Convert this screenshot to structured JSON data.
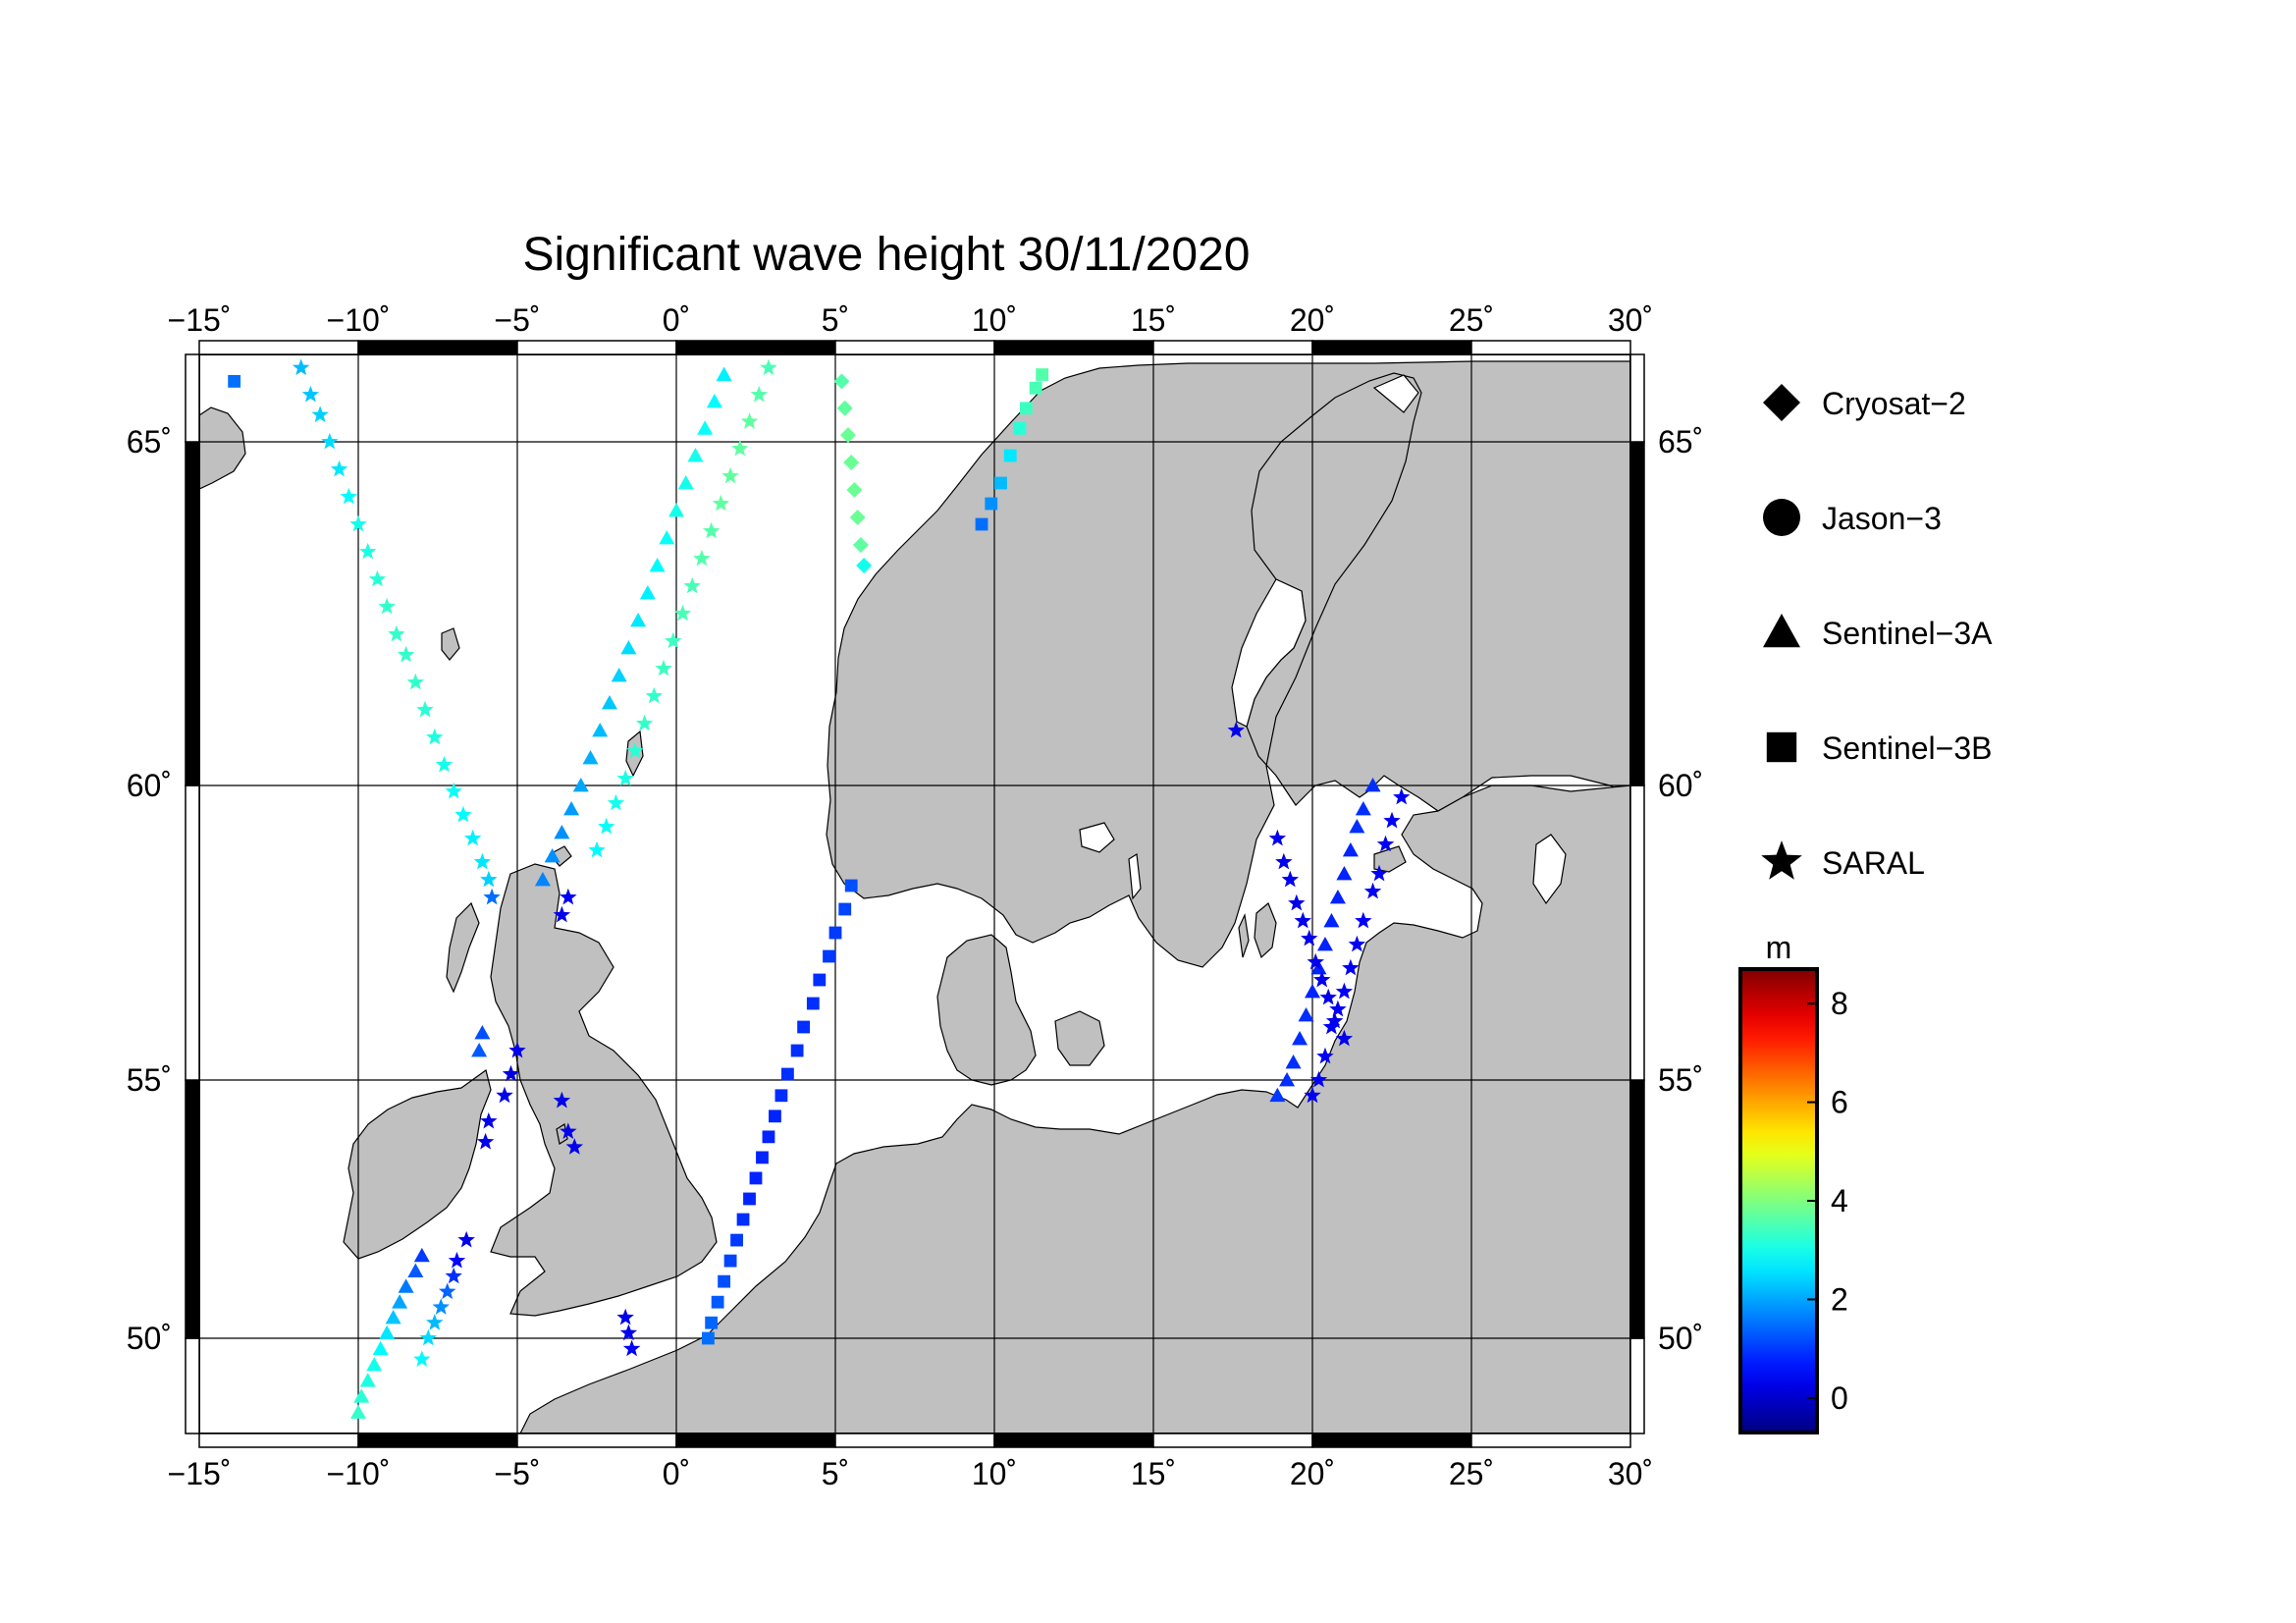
{
  "title": "Significant wave height 30/11/2020",
  "map": {
    "lon_range": [
      -15,
      30
    ],
    "lat_range": [
      48.2,
      66.3
    ],
    "lon_ticks": [
      -15,
      -10,
      -5,
      0,
      5,
      10,
      15,
      20,
      25,
      30
    ],
    "lon_tick_labels": [
      "−15˚",
      "−10˚",
      "−5˚",
      "0˚",
      "5˚",
      "10˚",
      "15˚",
      "20˚",
      "25˚",
      "30˚"
    ],
    "lat_ticks": [
      50,
      55,
      60,
      65
    ],
    "lat_tick_labels": [
      "50˚",
      "55˚",
      "60˚",
      "65˚"
    ],
    "grid": true,
    "land_color": "#c0c0c0",
    "sea_color": "#ffffff"
  },
  "legend": {
    "position": "right",
    "items": [
      {
        "label": "Cryosat−2",
        "marker": "diamond"
      },
      {
        "label": "Jason−3",
        "marker": "circle"
      },
      {
        "label": "Sentinel−3A",
        "marker": "triangle"
      },
      {
        "label": "Sentinel−3B",
        "marker": "square"
      },
      {
        "label": "SARAL",
        "marker": "star"
      }
    ]
  },
  "colorbar": {
    "unit": "m",
    "range": [
      -0.7,
      8.7
    ],
    "tick_values": [
      0,
      2,
      4,
      6,
      8
    ],
    "tick_labels": [
      "0",
      "2",
      "4",
      "6",
      "8"
    ],
    "colormap": "jet"
  },
  "chart_data": {
    "type": "scatter",
    "title": "Significant wave height 30/11/2020",
    "xlabel": "",
    "ylabel": "",
    "x_unit": "longitude (deg)",
    "y_unit": "latitude (deg)",
    "xlim": [
      -15,
      30
    ],
    "ylim": [
      48.2,
      66.3
    ],
    "color_value_unit": "m",
    "tracks": [
      {
        "satellite": "Sentinel-3B",
        "marker": "square",
        "points": [
          [
            -13.9,
            65.9,
            1.5
          ]
        ]
      },
      {
        "satellite": "SARAL",
        "marker": "star",
        "points": [
          [
            -11.8,
            66.1,
            2.2
          ],
          [
            -11.5,
            65.7,
            2.3
          ],
          [
            -11.2,
            65.4,
            2.4
          ],
          [
            -10.9,
            65.0,
            2.5
          ],
          [
            -10.6,
            64.6,
            2.6
          ],
          [
            -10.3,
            64.2,
            2.8
          ],
          [
            -10.0,
            63.8,
            3.0
          ],
          [
            -9.7,
            63.4,
            3.1
          ],
          [
            -9.4,
            63.0,
            3.2
          ],
          [
            -9.1,
            62.6,
            3.3
          ],
          [
            -8.8,
            62.2,
            3.3
          ],
          [
            -8.5,
            61.9,
            3.3
          ],
          [
            -8.2,
            61.5,
            3.3
          ],
          [
            -7.9,
            61.1,
            3.2
          ],
          [
            -7.6,
            60.7,
            3.1
          ],
          [
            -7.3,
            60.3,
            3.0
          ],
          [
            -7.0,
            59.9,
            2.9
          ],
          [
            -6.7,
            59.5,
            2.8
          ],
          [
            -6.4,
            59.1,
            2.7
          ],
          [
            -6.1,
            58.7,
            2.6
          ],
          [
            -5.9,
            58.4,
            2.4
          ],
          [
            -5.8,
            58.1,
            1.5
          ]
        ]
      },
      {
        "satellite": "SARAL",
        "marker": "star",
        "points": [
          [
            -3.4,
            58.1,
            0.4
          ],
          [
            -3.6,
            57.8,
            0.3
          ]
        ]
      },
      {
        "satellite": "Sentinel-3A",
        "marker": "triangle",
        "points": [
          [
            1.5,
            66.0,
            2.7
          ],
          [
            1.2,
            65.6,
            2.8
          ],
          [
            0.9,
            65.2,
            2.9
          ],
          [
            0.6,
            64.8,
            3.0
          ],
          [
            0.3,
            64.4,
            3.0
          ],
          [
            0.0,
            64.0,
            3.0
          ],
          [
            -0.3,
            63.6,
            2.9
          ],
          [
            -0.6,
            63.2,
            2.8
          ],
          [
            -0.9,
            62.8,
            2.7
          ],
          [
            -1.2,
            62.4,
            2.6
          ],
          [
            -1.5,
            62.0,
            2.5
          ],
          [
            -1.8,
            61.6,
            2.4
          ],
          [
            -2.1,
            61.2,
            2.3
          ],
          [
            -2.4,
            60.8,
            2.2
          ],
          [
            -2.7,
            60.4,
            2.1
          ],
          [
            -3.0,
            60.0,
            2.0
          ],
          [
            -3.3,
            59.6,
            1.9
          ],
          [
            -3.6,
            59.2,
            1.8
          ],
          [
            -3.9,
            58.8,
            1.8
          ],
          [
            -4.2,
            58.4,
            1.7
          ]
        ]
      },
      {
        "satellite": "SARAL",
        "marker": "star",
        "points": [
          [
            2.9,
            66.1,
            3.5
          ],
          [
            2.6,
            65.7,
            3.6
          ],
          [
            2.3,
            65.3,
            3.7
          ],
          [
            2.0,
            64.9,
            3.7
          ],
          [
            1.7,
            64.5,
            3.7
          ],
          [
            1.4,
            64.1,
            3.7
          ],
          [
            1.1,
            63.7,
            3.6
          ],
          [
            0.8,
            63.3,
            3.6
          ],
          [
            0.5,
            62.9,
            3.5
          ],
          [
            0.2,
            62.5,
            3.5
          ],
          [
            -0.1,
            62.1,
            3.4
          ],
          [
            -0.4,
            61.7,
            3.4
          ],
          [
            -0.7,
            61.3,
            3.3
          ],
          [
            -1.0,
            60.9,
            3.3
          ],
          [
            -1.3,
            60.5,
            3.2
          ],
          [
            -1.6,
            60.1,
            3.1
          ],
          [
            -1.9,
            59.7,
            3.0
          ],
          [
            -2.2,
            59.3,
            2.9
          ],
          [
            -2.5,
            58.9,
            2.8
          ]
        ]
      },
      {
        "satellite": "Cryosat-2",
        "marker": "diamond",
        "points": [
          [
            5.2,
            65.9,
            3.6
          ],
          [
            5.3,
            65.5,
            3.7
          ],
          [
            5.4,
            65.1,
            3.8
          ],
          [
            5.5,
            64.7,
            3.8
          ],
          [
            5.6,
            64.3,
            3.8
          ],
          [
            5.7,
            63.9,
            3.8
          ],
          [
            5.8,
            63.5,
            3.7
          ],
          [
            5.9,
            63.2,
            3.0
          ]
        ]
      },
      {
        "satellite": "Sentinel-3B",
        "marker": "square",
        "points": [
          [
            11.5,
            66.0,
            3.6
          ],
          [
            11.3,
            65.8,
            3.5
          ],
          [
            11.0,
            65.5,
            3.4
          ],
          [
            10.8,
            65.2,
            3.2
          ],
          [
            10.5,
            64.8,
            2.6
          ],
          [
            10.2,
            64.4,
            2.2
          ],
          [
            9.9,
            64.1,
            1.8
          ],
          [
            9.6,
            63.8,
            1.5
          ]
        ]
      },
      {
        "satellite": "Sentinel-3B",
        "marker": "square",
        "points": [
          [
            5.5,
            58.3,
            1.2
          ],
          [
            5.3,
            57.9,
            1.1
          ],
          [
            5.0,
            57.5,
            1.0
          ],
          [
            4.8,
            57.1,
            1.0
          ],
          [
            4.5,
            56.7,
            0.9
          ],
          [
            4.3,
            56.3,
            0.9
          ],
          [
            4.0,
            55.9,
            0.9
          ],
          [
            3.8,
            55.5,
            0.9
          ],
          [
            3.5,
            55.1,
            0.9
          ],
          [
            3.3,
            54.7,
            0.9
          ],
          [
            3.1,
            54.3,
            0.8
          ],
          [
            2.9,
            53.9,
            0.8
          ],
          [
            2.7,
            53.5,
            0.8
          ],
          [
            2.5,
            53.1,
            0.8
          ],
          [
            2.3,
            52.7,
            0.8
          ],
          [
            2.1,
            52.3,
            0.9
          ],
          [
            1.9,
            51.9,
            1.0
          ],
          [
            1.7,
            51.5,
            1.1
          ],
          [
            1.5,
            51.1,
            1.2
          ],
          [
            1.3,
            50.7,
            1.3
          ],
          [
            1.1,
            50.3,
            1.4
          ],
          [
            1.0,
            50.0,
            1.5
          ]
        ]
      },
      {
        "satellite": "Sentinel-3A",
        "marker": "triangle",
        "points": [
          [
            -6.1,
            55.8,
            1.2
          ],
          [
            -6.2,
            55.5,
            1.3
          ],
          [
            -8.0,
            51.6,
            1.0
          ],
          [
            -8.2,
            51.3,
            1.3
          ],
          [
            -8.5,
            51.0,
            1.6
          ],
          [
            -8.7,
            50.7,
            2.0
          ],
          [
            -8.9,
            50.4,
            2.3
          ],
          [
            -9.1,
            50.1,
            2.6
          ],
          [
            -9.3,
            49.8,
            2.8
          ],
          [
            -9.5,
            49.5,
            3.0
          ],
          [
            -9.7,
            49.2,
            3.1
          ],
          [
            -9.9,
            48.9,
            3.2
          ],
          [
            -10.0,
            48.6,
            3.3
          ]
        ]
      },
      {
        "satellite": "SARAL",
        "marker": "star",
        "points": [
          [
            -5.0,
            55.5,
            0.3
          ],
          [
            -5.2,
            55.1,
            0.2
          ],
          [
            -5.4,
            54.7,
            0.3
          ],
          [
            -5.9,
            54.2,
            0.3
          ],
          [
            -6.0,
            53.8,
            0.3
          ],
          [
            -3.6,
            54.6,
            0.3
          ],
          [
            -3.4,
            54.0,
            0.3
          ],
          [
            -3.2,
            53.7,
            0.3
          ],
          [
            -6.6,
            51.9,
            0.3
          ],
          [
            -6.9,
            51.5,
            0.5
          ],
          [
            -7.0,
            51.2,
            0.9
          ],
          [
            -7.2,
            50.9,
            1.4
          ],
          [
            -7.4,
            50.6,
            1.8
          ],
          [
            -7.6,
            50.3,
            2.2
          ],
          [
            -7.8,
            50.0,
            2.5
          ],
          [
            -8.0,
            49.6,
            2.8
          ]
        ]
      },
      {
        "satellite": "SARAL",
        "marker": "star",
        "points": [
          [
            -1.6,
            50.4,
            0.3
          ],
          [
            -1.5,
            50.1,
            0.3
          ],
          [
            -1.4,
            49.8,
            0.4
          ]
        ]
      },
      {
        "satellite": "Sentinel-3A",
        "marker": "triangle",
        "points": [
          [
            21.9,
            60.0,
            0.9
          ],
          [
            21.6,
            59.6,
            0.9
          ],
          [
            21.4,
            59.3,
            0.9
          ],
          [
            21.2,
            58.9,
            0.8
          ],
          [
            21.0,
            58.5,
            0.8
          ],
          [
            20.8,
            58.1,
            0.8
          ],
          [
            20.6,
            57.7,
            0.8
          ],
          [
            20.4,
            57.3,
            0.8
          ],
          [
            20.2,
            56.9,
            0.8
          ],
          [
            20.0,
            56.5,
            0.8
          ],
          [
            19.8,
            56.1,
            0.9
          ],
          [
            19.6,
            55.7,
            0.9
          ],
          [
            19.4,
            55.3,
            0.9
          ],
          [
            19.2,
            55.0,
            0.9
          ],
          [
            18.9,
            54.7,
            1.0
          ]
        ]
      },
      {
        "satellite": "SARAL",
        "marker": "star",
        "points": [
          [
            17.6,
            60.8,
            0.3
          ],
          [
            18.9,
            59.1,
            0.3
          ],
          [
            19.1,
            58.7,
            0.3
          ],
          [
            19.3,
            58.4,
            0.3
          ],
          [
            19.5,
            58.0,
            0.3
          ],
          [
            19.7,
            57.7,
            0.3
          ],
          [
            19.9,
            57.4,
            0.3
          ],
          [
            20.1,
            57.0,
            0.3
          ],
          [
            20.3,
            56.7,
            0.3
          ],
          [
            20.5,
            56.4,
            0.3
          ],
          [
            20.7,
            56.0,
            0.3
          ],
          [
            21.0,
            55.7,
            0.3
          ],
          [
            22.8,
            59.8,
            0.4
          ],
          [
            22.5,
            59.4,
            0.4
          ],
          [
            22.3,
            59.0,
            0.4
          ],
          [
            22.1,
            58.5,
            0.4
          ],
          [
            21.9,
            58.2,
            0.4
          ],
          [
            21.6,
            57.7,
            0.4
          ],
          [
            21.4,
            57.3,
            0.4
          ],
          [
            21.2,
            56.9,
            0.4
          ],
          [
            21.0,
            56.5,
            0.4
          ],
          [
            20.8,
            56.2,
            0.4
          ],
          [
            20.6,
            55.9,
            0.4
          ],
          [
            20.4,
            55.4,
            0.4
          ],
          [
            20.2,
            55.0,
            0.4
          ],
          [
            20.0,
            54.7,
            0.4
          ]
        ]
      }
    ]
  }
}
